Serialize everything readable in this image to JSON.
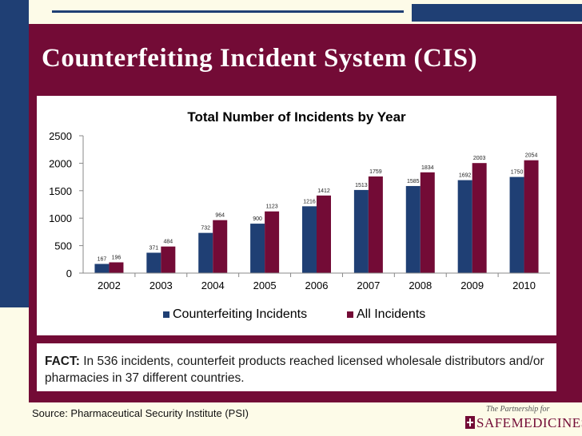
{
  "slide": {
    "title": "Counterfeiting Incident System (CIS)",
    "fact_label": "FACT:",
    "fact_text": " In 536 incidents, counterfeit products reached licensed wholesale distributors and/or pharmacies in 37 different countries.",
    "source": "Source: Pharmaceutical Security Institute (PSI)",
    "logo_top": "The Partnership for",
    "logo_main": "SAFEMEDICINES"
  },
  "colors": {
    "panel": "#730b36",
    "stripe": "#1f3f74",
    "series_counterfeit": "#1f3f74",
    "series_all": "#730b36"
  },
  "chart_data": {
    "type": "bar",
    "title": "Total Number of Incidents by Year",
    "categories": [
      "2002",
      "2003",
      "2004",
      "2005",
      "2006",
      "2007",
      "2008",
      "2009",
      "2010"
    ],
    "series": [
      {
        "name": "Counterfeiting Incidents",
        "values": [
          167,
          371,
          732,
          900,
          1216,
          1513,
          1585,
          1692,
          1750
        ]
      },
      {
        "name": "All Incidents",
        "values": [
          196,
          484,
          964,
          1123,
          1412,
          1759,
          1834,
          2003,
          2054
        ]
      }
    ],
    "yticks": [
      0,
      500,
      1000,
      1500,
      2000,
      2500
    ],
    "ylim": [
      0,
      2500
    ],
    "xlabel": "",
    "ylabel": "",
    "legend": "bottom"
  }
}
